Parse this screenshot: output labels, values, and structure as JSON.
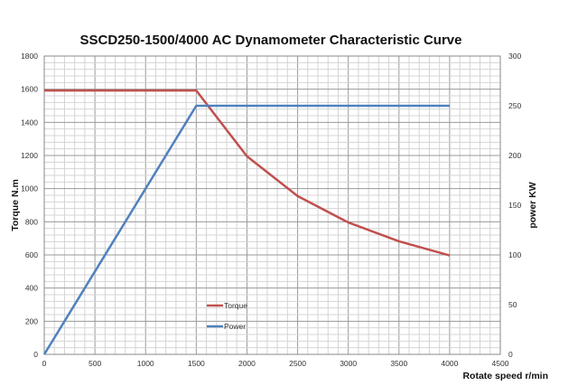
{
  "chart_data": {
    "type": "line",
    "title": "SSCD250-1500/4000 AC Dynamometer Characteristic Curve",
    "xlabel": "Rotate speed r/min",
    "ylabel": "Torque N.m",
    "y2label": "power KW",
    "xlim": [
      0,
      4500
    ],
    "ylim": [
      0,
      1800
    ],
    "y2lim": [
      0,
      300
    ],
    "xticks": [
      0,
      500,
      1000,
      1500,
      2000,
      2500,
      3000,
      3500,
      4000,
      4500
    ],
    "yticks": [
      0,
      200,
      400,
      600,
      800,
      1000,
      1200,
      1400,
      1600,
      1800
    ],
    "y2ticks": [
      0,
      50,
      100,
      150,
      200,
      250,
      300
    ],
    "grid": true,
    "legend_position": "lower-left",
    "series": [
      {
        "name": "Torque",
        "axis": "left",
        "color": "#c0504d",
        "x": [
          0,
          1500,
          2000,
          2500,
          3000,
          3500,
          4000
        ],
        "y": [
          1592,
          1592,
          1195,
          955,
          796,
          682,
          597
        ]
      },
      {
        "name": "Power",
        "axis": "right",
        "color": "#4f81bd",
        "x": [
          0,
          1500,
          4000
        ],
        "y": [
          0,
          250,
          250
        ]
      }
    ]
  }
}
